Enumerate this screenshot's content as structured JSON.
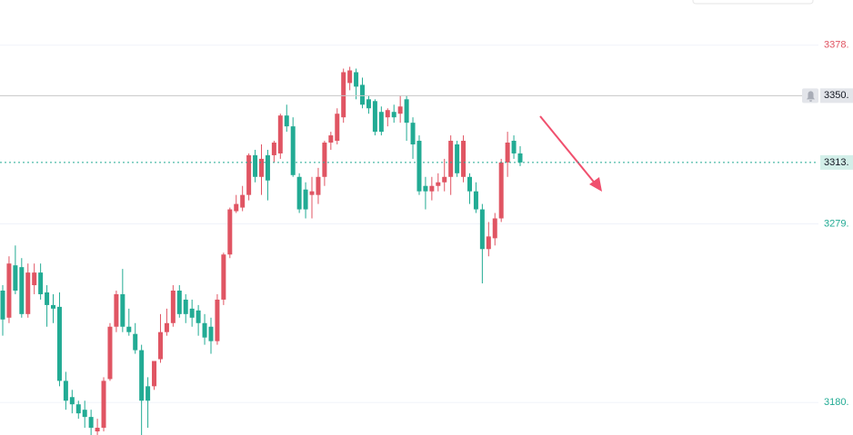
{
  "chart_data": {
    "type": "candlestick",
    "ylim": [
      3162,
      3403
    ],
    "yticks": [
      {
        "value": 3378,
        "label": "3378."
      },
      {
        "value": 3279,
        "label": "3279."
      },
      {
        "value": 3180,
        "label": "3180."
      }
    ],
    "alert_line": {
      "value": 3350,
      "label": "3350."
    },
    "last_price": {
      "value": 3313,
      "label": "3313."
    },
    "up_color": "#e05563",
    "down_color": "#22ab94",
    "grid": true,
    "open": [
      3242,
      3227,
      3256,
      3255,
      3229,
      3245,
      3252,
      3241,
      3234,
      3233,
      3192,
      3183,
      3179,
      3176,
      3172,
      3164,
      3166,
      3193,
      3222,
      3240,
      3222,
      3218,
      3209,
      3189,
      3189,
      3204,
      3219,
      3224,
      3242,
      3237,
      3232,
      3231,
      3224,
      3222,
      3214,
      3237,
      3262,
      3286,
      3288,
      3295,
      3317,
      3305,
      3317,
      3317,
      3318,
      3339,
      3333,
      3305,
      3298,
      3295,
      3295,
      3305,
      3324,
      3325,
      3338,
      3357,
      3363,
      3356,
      3348,
      3347,
      3341,
      3338,
      3341,
      3340,
      3348,
      3335,
      3325,
      3300,
      3297,
      3300,
      3302,
      3305,
      3323,
      3305,
      3305,
      3297,
      3287,
      3265,
      3271,
      3282,
      3313,
      3325,
      3318
    ],
    "high": [
      3245,
      3261,
      3267,
      3260,
      3257,
      3257,
      3257,
      3245,
      3240,
      3241,
      3197,
      3187,
      3181,
      3181,
      3176,
      3171,
      3194,
      3224,
      3242,
      3254,
      3232,
      3224,
      3212,
      3194,
      3203,
      3229,
      3232,
      3245,
      3245,
      3240,
      3237,
      3234,
      3229,
      3227,
      3240,
      3263,
      3288,
      3295,
      3300,
      3318,
      3320,
      3323,
      3320,
      3325,
      3340,
      3345,
      3338,
      3307,
      3302,
      3305,
      3310,
      3325,
      3330,
      3343,
      3365,
      3366,
      3365,
      3360,
      3350,
      3348,
      3344,
      3343,
      3345,
      3350,
      3350,
      3338,
      3328,
      3305,
      3305,
      3307,
      3315,
      3328,
      3325,
      3328,
      3307,
      3302,
      3290,
      3280,
      3285,
      3315,
      3330,
      3328,
      3322
    ],
    "low": [
      3217,
      3224,
      3240,
      3227,
      3227,
      3240,
      3237,
      3222,
      3224,
      3189,
      3176,
      3174,
      3171,
      3166,
      3162,
      3162,
      3164,
      3192,
      3219,
      3219,
      3217,
      3207,
      3162,
      3166,
      3187,
      3202,
      3217,
      3222,
      3227,
      3224,
      3222,
      3217,
      3212,
      3207,
      3212,
      3234,
      3260,
      3285,
      3286,
      3292,
      3302,
      3295,
      3292,
      3313,
      3315,
      3330,
      3305,
      3285,
      3282,
      3282,
      3290,
      3300,
      3320,
      3323,
      3335,
      3353,
      3348,
      3343,
      3340,
      3328,
      3328,
      3333,
      3335,
      3335,
      3325,
      3315,
      3295,
      3287,
      3292,
      3297,
      3297,
      3295,
      3305,
      3302,
      3290,
      3285,
      3246,
      3261,
      3267,
      3280,
      3305,
      3315,
      3311
    ],
    "close": [
      3226,
      3257,
      3242,
      3229,
      3252,
      3252,
      3240,
      3234,
      3232,
      3192,
      3181,
      3179,
      3174,
      3172,
      3166,
      3166,
      3192,
      3222,
      3240,
      3222,
      3219,
      3209,
      3181,
      3181,
      3203,
      3219,
      3224,
      3242,
      3229,
      3229,
      3227,
      3224,
      3216,
      3214,
      3237,
      3262,
      3287,
      3290,
      3295,
      3317,
      3305,
      3315,
      3303,
      3324,
      3339,
      3333,
      3306,
      3287,
      3287,
      3297,
      3305,
      3324,
      3328,
      3340,
      3363,
      3364,
      3355,
      3345,
      3343,
      3330,
      3330,
      3342,
      3338,
      3344,
      3335,
      3323,
      3297,
      3297,
      3300,
      3302,
      3305,
      3325,
      3307,
      3325,
      3297,
      3287,
      3265,
      3272,
      3282,
      3313,
      3324,
      3318,
      3313
    ]
  }
}
